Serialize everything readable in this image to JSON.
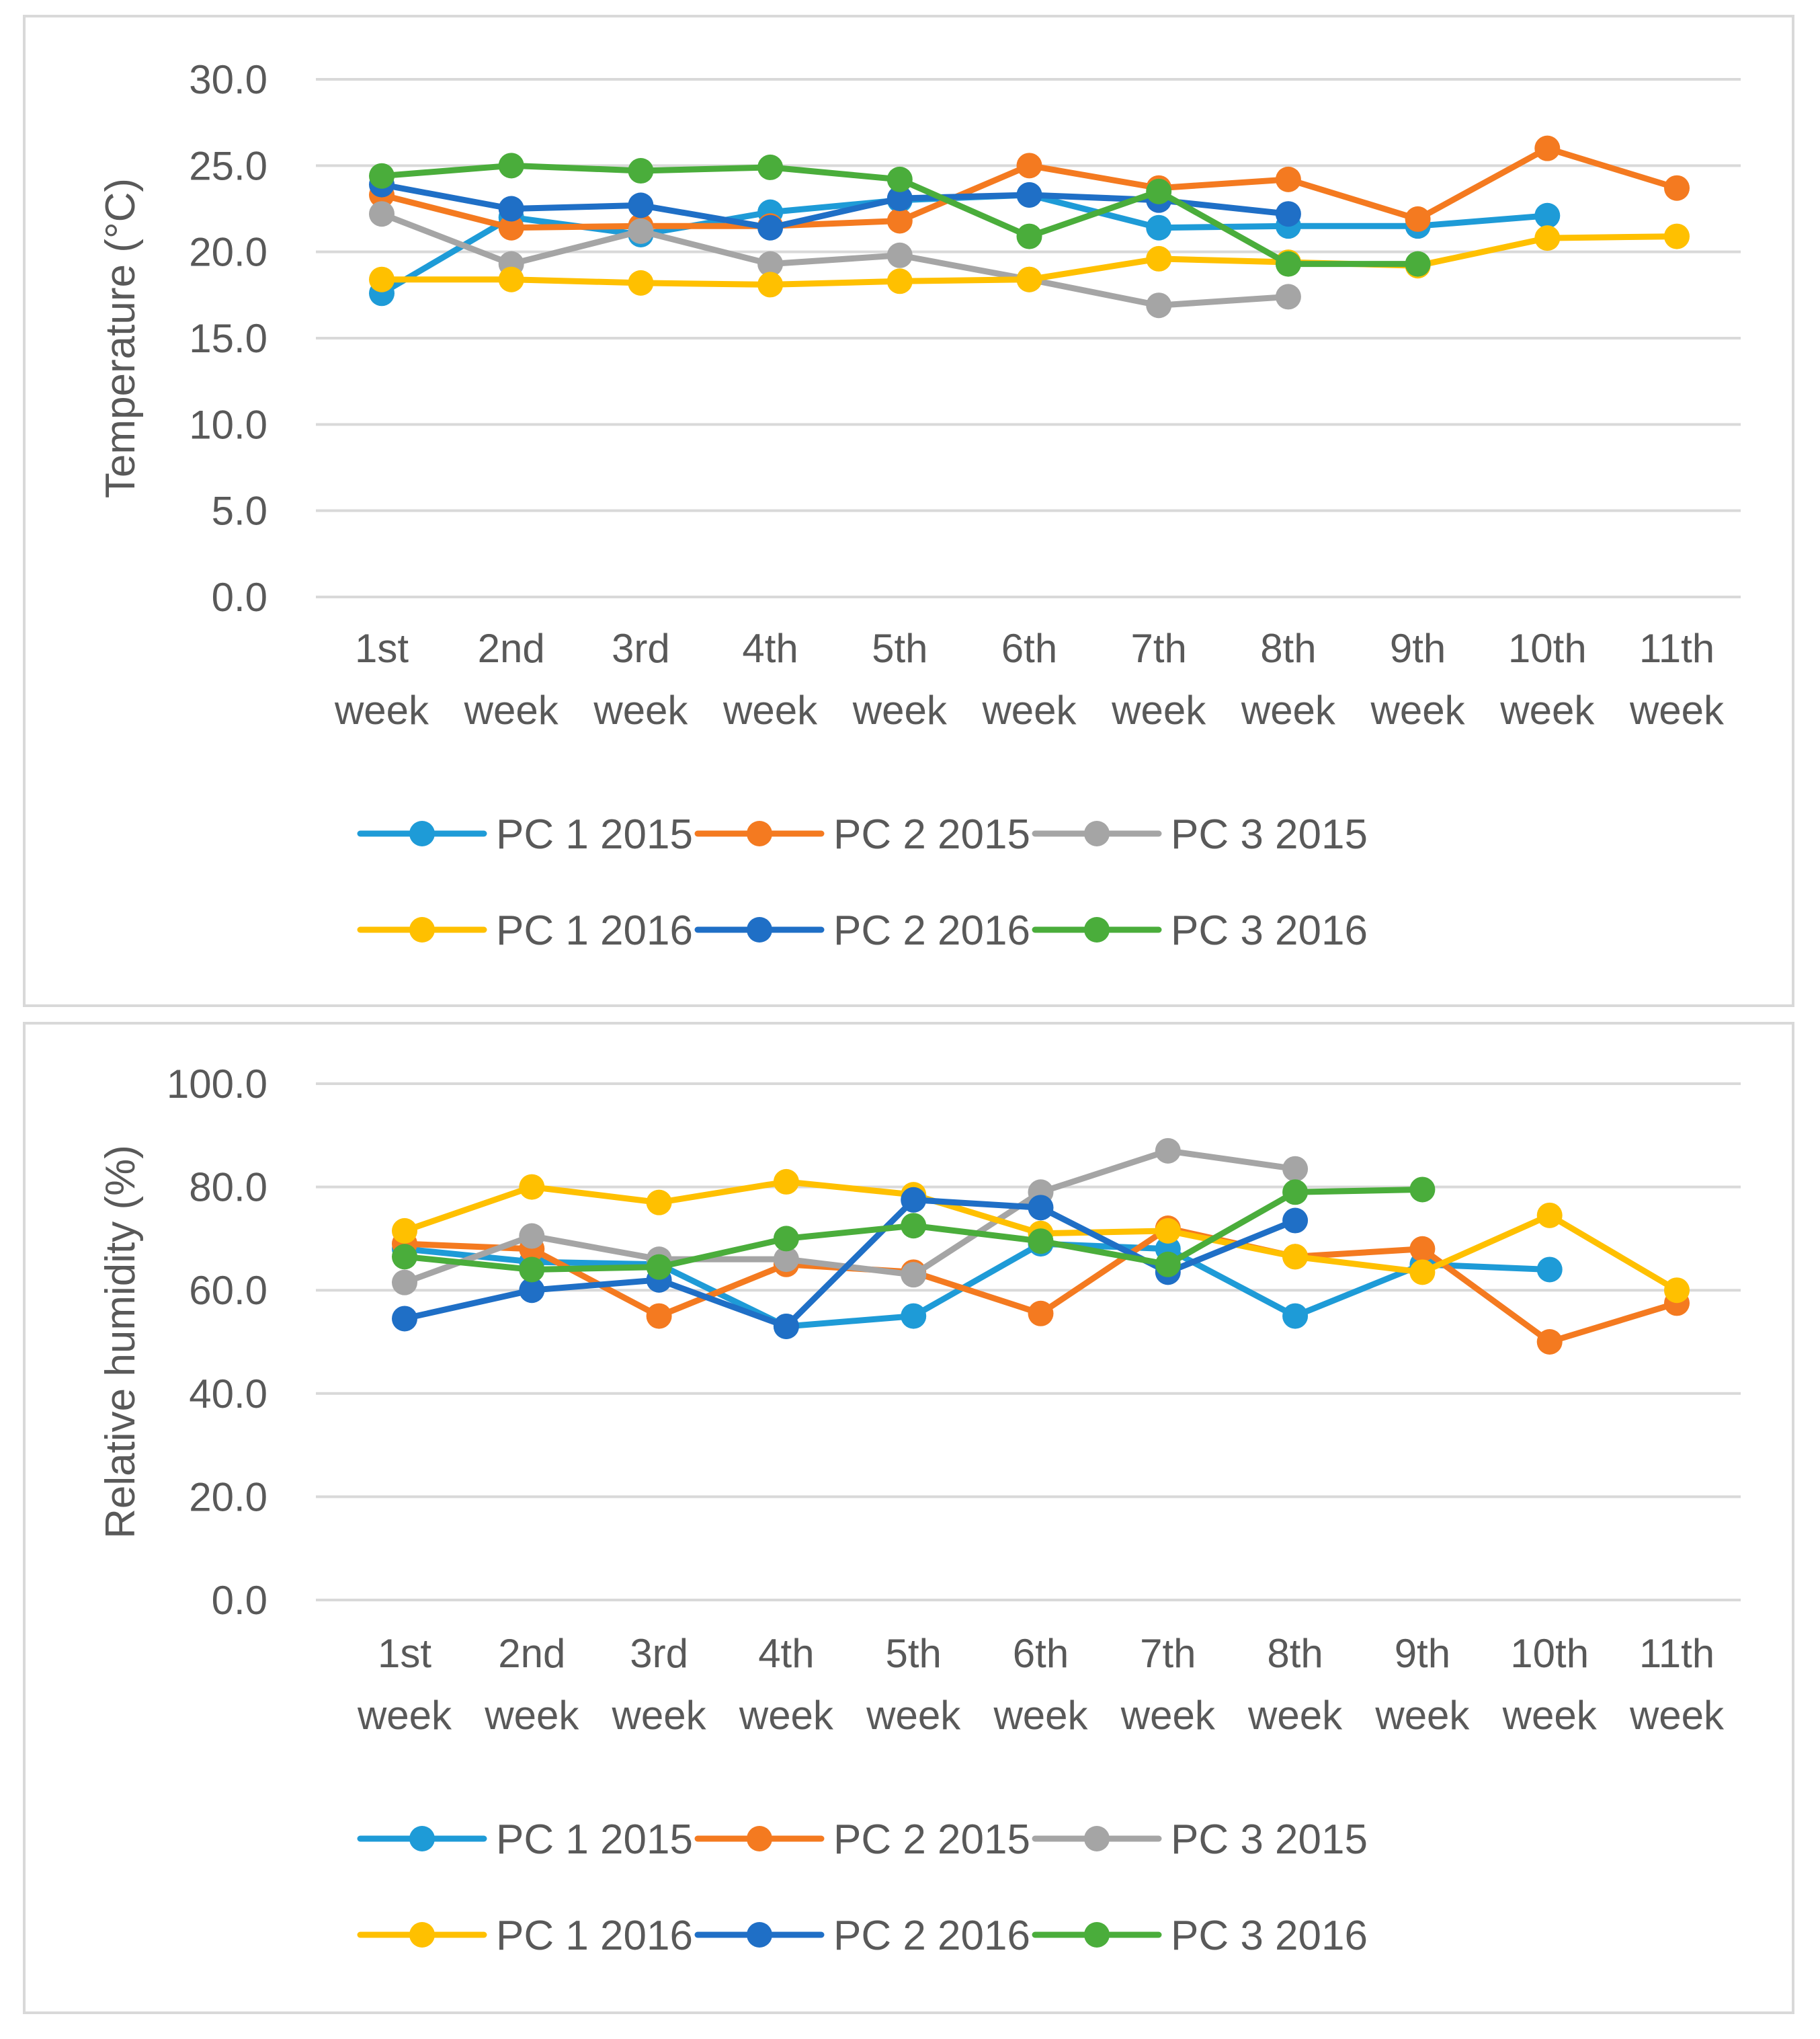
{
  "chart_data": [
    {
      "type": "line",
      "title": "",
      "xlabel": "",
      "ylabel": "Temperature (°C)",
      "ylim": [
        0,
        30
      ],
      "yticks": [
        "0.0",
        "5.0",
        "10.0",
        "15.0",
        "20.0",
        "25.0",
        "30.0"
      ],
      "categories": [
        "1st week",
        "2nd week",
        "3rd week",
        "4th week",
        "5th week",
        "6th week",
        "7th week",
        "8th week",
        "9th week",
        "10th week",
        "11th week"
      ],
      "category_lines": [
        [
          "1st",
          "week"
        ],
        [
          "2nd",
          "week"
        ],
        [
          "3rd",
          "week"
        ],
        [
          "4th",
          "week"
        ],
        [
          "5th",
          "week"
        ],
        [
          "6th",
          "week"
        ],
        [
          "7th",
          "week"
        ],
        [
          "8th",
          "week"
        ],
        [
          "9th",
          "week"
        ],
        [
          "10th",
          "week"
        ],
        [
          "11th",
          "week"
        ]
      ],
      "grid": true,
      "legend": "bottom",
      "series": [
        {
          "name": "PC 1 2015",
          "color": "#1E9BD7",
          "values": [
            17.6,
            22.0,
            21.0,
            22.3,
            23.0,
            23.3,
            21.4,
            21.5,
            21.5,
            22.1,
            null
          ]
        },
        {
          "name": "PC 2 2015",
          "color": "#F47A20",
          "values": [
            23.3,
            21.4,
            21.5,
            21.5,
            21.8,
            25.0,
            23.7,
            24.2,
            21.9,
            26.0,
            23.7
          ]
        },
        {
          "name": "PC 3 2015",
          "color": "#A5A5A5",
          "values": [
            22.2,
            19.3,
            21.2,
            19.3,
            19.8,
            18.4,
            16.9,
            17.4,
            null,
            null,
            null
          ]
        },
        {
          "name": "PC 1 2016",
          "color": "#FFC000",
          "values": [
            18.4,
            18.4,
            18.2,
            18.1,
            18.3,
            18.4,
            19.6,
            19.4,
            19.2,
            20.8,
            20.9
          ]
        },
        {
          "name": "PC 2 2016",
          "color": "#1F6FC6",
          "values": [
            23.9,
            22.5,
            22.7,
            21.4,
            23.1,
            23.3,
            23.0,
            22.2,
            null,
            null,
            null
          ]
        },
        {
          "name": "PC 3 2016",
          "color": "#4AAD3B",
          "values": [
            24.4,
            25.0,
            24.7,
            24.9,
            24.2,
            20.9,
            23.5,
            19.3,
            19.3,
            null,
            null
          ]
        }
      ]
    },
    {
      "type": "line",
      "title": "",
      "xlabel": "",
      "ylabel": "Relative humidity (%)",
      "ylim": [
        0,
        100
      ],
      "yticks": [
        "0.0",
        "20.0",
        "40.0",
        "60.0",
        "80.0",
        "100.0"
      ],
      "categories": [
        "1st week",
        "2nd week",
        "3rd week",
        "4th week",
        "5th week",
        "6th week",
        "7th week",
        "8th week",
        "9th week",
        "10th week",
        "11th week"
      ],
      "category_lines": [
        [
          "1st",
          "week"
        ],
        [
          "2nd",
          "week"
        ],
        [
          "3rd",
          "week"
        ],
        [
          "4th",
          "week"
        ],
        [
          "5th",
          "week"
        ],
        [
          "6th",
          "week"
        ],
        [
          "7th",
          "week"
        ],
        [
          "8th",
          "week"
        ],
        [
          "9th",
          "week"
        ],
        [
          "10th",
          "week"
        ],
        [
          "11th",
          "week"
        ]
      ],
      "grid": true,
      "legend": "bottom",
      "series": [
        {
          "name": "PC 1 2015",
          "color": "#1E9BD7",
          "values": [
            68.0,
            65.5,
            65.0,
            53.0,
            55.0,
            69.0,
            68.0,
            55.0,
            65.0,
            64.0,
            null
          ]
        },
        {
          "name": "PC 2 2015",
          "color": "#F47A20",
          "values": [
            69.0,
            68.0,
            55.0,
            65.0,
            63.5,
            55.5,
            72.0,
            66.5,
            68.0,
            50.0,
            57.5
          ]
        },
        {
          "name": "PC 3 2015",
          "color": "#A5A5A5",
          "values": [
            61.5,
            70.5,
            66.0,
            66.0,
            63.0,
            79.0,
            87.0,
            83.5,
            null,
            null,
            null
          ]
        },
        {
          "name": "PC 1 2016",
          "color": "#FFC000",
          "values": [
            71.5,
            80.0,
            77.0,
            81.0,
            78.5,
            71.0,
            71.5,
            66.5,
            63.5,
            74.5,
            60.0
          ]
        },
        {
          "name": "PC 2 2016",
          "color": "#1F6FC6",
          "values": [
            54.5,
            60.0,
            62.0,
            53.0,
            77.5,
            76.0,
            63.5,
            73.5,
            null,
            null,
            null
          ]
        },
        {
          "name": "PC 3 2016",
          "color": "#4AAD3B",
          "values": [
            66.5,
            64.0,
            64.5,
            70.0,
            72.5,
            69.5,
            65.0,
            79.0,
            79.5,
            null,
            null
          ]
        }
      ]
    }
  ]
}
